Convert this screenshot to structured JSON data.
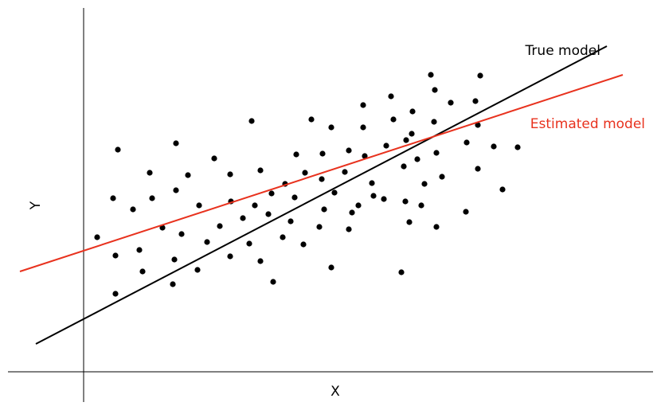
{
  "chart_data": {
    "type": "scatter",
    "xlabel": "X",
    "ylabel": "Y",
    "xlim": [
      -9.5,
      71.5
    ],
    "ylim": [
      -3.8,
      45.7
    ],
    "points": {
      "color": "#000000",
      "x": [
        1.7,
        4.3,
        3.7,
        4.0,
        4.0,
        7.0,
        7.4,
        6.2,
        8.3,
        8.6,
        9.9,
        11.6,
        11.6,
        13.1,
        11.4,
        11.2,
        12.3,
        14.3,
        14.5,
        16.4,
        15.5,
        17.1,
        18.4,
        18.5,
        18.4,
        20.0,
        20.8,
        21.1,
        22.2,
        22.2,
        21.5,
        23.2,
        23.8,
        23.6,
        25.3,
        25.0,
        26.0,
        26.7,
        26.5,
        27.8,
        27.6,
        28.6,
        30.0,
        29.9,
        30.2,
        29.6,
        31.1,
        31.1,
        31.5,
        33.3,
        32.8,
        33.3,
        33.7,
        35.1,
        35.1,
        35.3,
        34.5,
        36.2,
        36.4,
        38.0,
        37.7,
        38.6,
        38.9,
        40.5,
        40.2,
        39.9,
        40.4,
        40.9,
        41.3,
        41.2,
        41.9,
        42.4,
        42.8,
        43.6,
        44.1,
        44.3,
        44.3,
        44.0,
        45.0,
        46.1,
        48.1,
        48.0,
        49.2,
        49.5,
        49.5,
        49.8,
        51.5,
        52.6,
        54.5
      ],
      "y": [
        16.9,
        27.9,
        21.8,
        14.6,
        9.8,
        15.3,
        12.6,
        20.4,
        25.0,
        21.8,
        18.1,
        28.7,
        22.8,
        24.7,
        14.1,
        11.0,
        17.3,
        12.8,
        20.9,
        26.8,
        16.3,
        18.3,
        24.8,
        21.4,
        14.5,
        19.3,
        16.1,
        31.5,
        25.3,
        13.9,
        20.9,
        19.8,
        11.3,
        22.4,
        23.6,
        16.9,
        18.9,
        27.3,
        21.9,
        25.0,
        16.0,
        31.7,
        27.4,
        24.2,
        20.4,
        18.2,
        30.7,
        13.1,
        22.5,
        27.8,
        25.1,
        17.9,
        20.0,
        33.5,
        30.7,
        27.1,
        20.9,
        23.7,
        22.1,
        28.4,
        21.7,
        34.6,
        31.7,
        29.1,
        25.8,
        12.5,
        21.4,
        18.8,
        32.7,
        29.9,
        26.7,
        20.9,
        23.6,
        37.3,
        35.4,
        27.5,
        18.2,
        31.4,
        24.5,
        33.8,
        28.8,
        20.1,
        34.0,
        31.0,
        25.5,
        37.2,
        28.3,
        22.9,
        28.2
      ]
    },
    "lines": [
      {
        "name": "True model",
        "color": "#000000",
        "x": [
          -6.0,
          65.7
        ],
        "y": [
          3.5,
          40.9
        ]
      },
      {
        "name": "Estimated model",
        "color": "#e8321e",
        "x": [
          -8.0,
          67.7
        ],
        "y": [
          12.6,
          37.3
        ]
      }
    ]
  }
}
